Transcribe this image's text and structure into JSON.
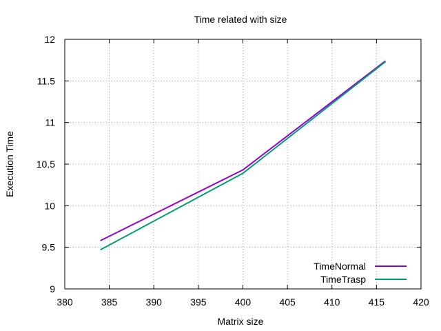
{
  "chart_data": {
    "type": "line",
    "title": "Time related with size",
    "xlabel": "Matrix size",
    "ylabel": "Execution Time",
    "xlim": [
      380,
      420
    ],
    "ylim": [
      9,
      12
    ],
    "xticks": [
      380,
      385,
      390,
      395,
      400,
      405,
      410,
      415,
      420
    ],
    "yticks": [
      9,
      9.5,
      10,
      10.5,
      11,
      11.5,
      12
    ],
    "xtick_labels": [
      "380",
      "385",
      "390",
      "395",
      "400",
      "405",
      "410",
      "415",
      "420"
    ],
    "ytick_labels": [
      "9",
      "9.5",
      "10",
      "10.5",
      "11",
      "11.5",
      "12"
    ],
    "grid": true,
    "legend_position": "bottom-right",
    "series": [
      {
        "name": "TimeNormal",
        "color": "#9400d3",
        "x": [
          384,
          400,
          416
        ],
        "y": [
          9.58,
          10.43,
          11.74
        ]
      },
      {
        "name": "TimeTrasp",
        "color": "#009e73",
        "x": [
          384,
          400,
          416
        ],
        "y": [
          9.47,
          10.39,
          11.73
        ]
      }
    ]
  }
}
